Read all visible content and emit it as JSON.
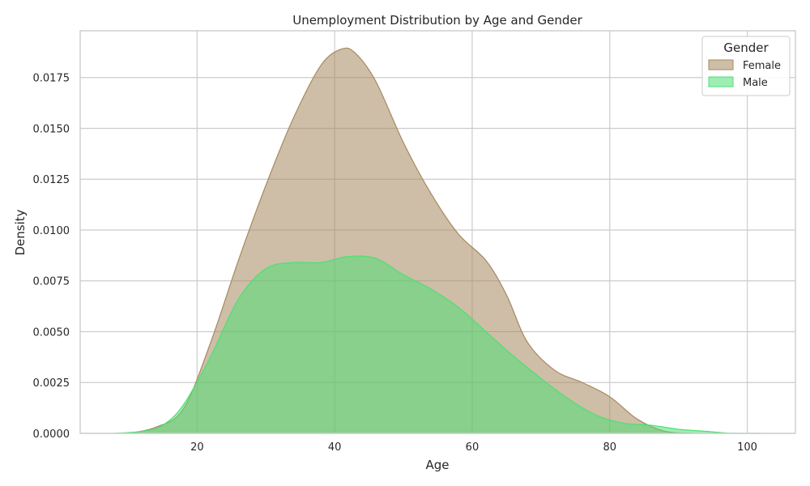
{
  "chart_data": {
    "type": "area",
    "title": "Unemployment Distribution by Age and Gender",
    "xlabel": "Age",
    "ylabel": "Density",
    "xlim": [
      3,
      107
    ],
    "ylim": [
      0,
      0.0198
    ],
    "xticks": [
      20,
      40,
      60,
      80,
      100
    ],
    "xtick_labels": [
      "20",
      "40",
      "60",
      "80",
      "100"
    ],
    "yticks": [
      0,
      0.0025,
      0.005,
      0.0075,
      0.01,
      0.0125,
      0.015,
      0.0175
    ],
    "ytick_labels": [
      "0.0000",
      "0.0025",
      "0.0050",
      "0.0075",
      "0.0100",
      "0.0125",
      "0.0150",
      "0.0175"
    ],
    "grid": true,
    "legend": {
      "title": "Gender",
      "placement": "top-right"
    },
    "series": [
      {
        "name": "Female",
        "fill": "#a6895f",
        "stroke": "#a6895f",
        "x": [
          10,
          14,
          18,
          22,
          26,
          30,
          34,
          38,
          41,
          43,
          46,
          50,
          54,
          58,
          62,
          65,
          68,
          72,
          76,
          80,
          84,
          88,
          92
        ],
        "y": [
          0.0,
          0.0003,
          0.0012,
          0.0045,
          0.0085,
          0.0122,
          0.0155,
          0.0181,
          0.0189,
          0.0187,
          0.0173,
          0.0143,
          0.0118,
          0.0098,
          0.0085,
          0.0068,
          0.0045,
          0.0031,
          0.0025,
          0.0018,
          0.0007,
          0.0001,
          0.0
        ]
      },
      {
        "name": "Male",
        "fill": "#4edf75",
        "stroke": "#4edf75",
        "x": [
          8,
          12,
          15,
          18,
          22,
          26,
          30,
          34,
          38,
          42,
          46,
          50,
          54,
          58,
          62,
          66,
          70,
          74,
          78,
          82,
          86,
          90,
          94,
          98,
          102
        ],
        "y": [
          0.0,
          0.0001,
          0.0004,
          0.0014,
          0.0038,
          0.0066,
          0.0081,
          0.0084,
          0.0084,
          0.0087,
          0.0086,
          0.0078,
          0.0071,
          0.0062,
          0.005,
          0.0038,
          0.0027,
          0.0017,
          0.0009,
          0.0005,
          0.0004,
          0.0002,
          0.0001,
          0.0,
          0.0
        ]
      }
    ]
  }
}
